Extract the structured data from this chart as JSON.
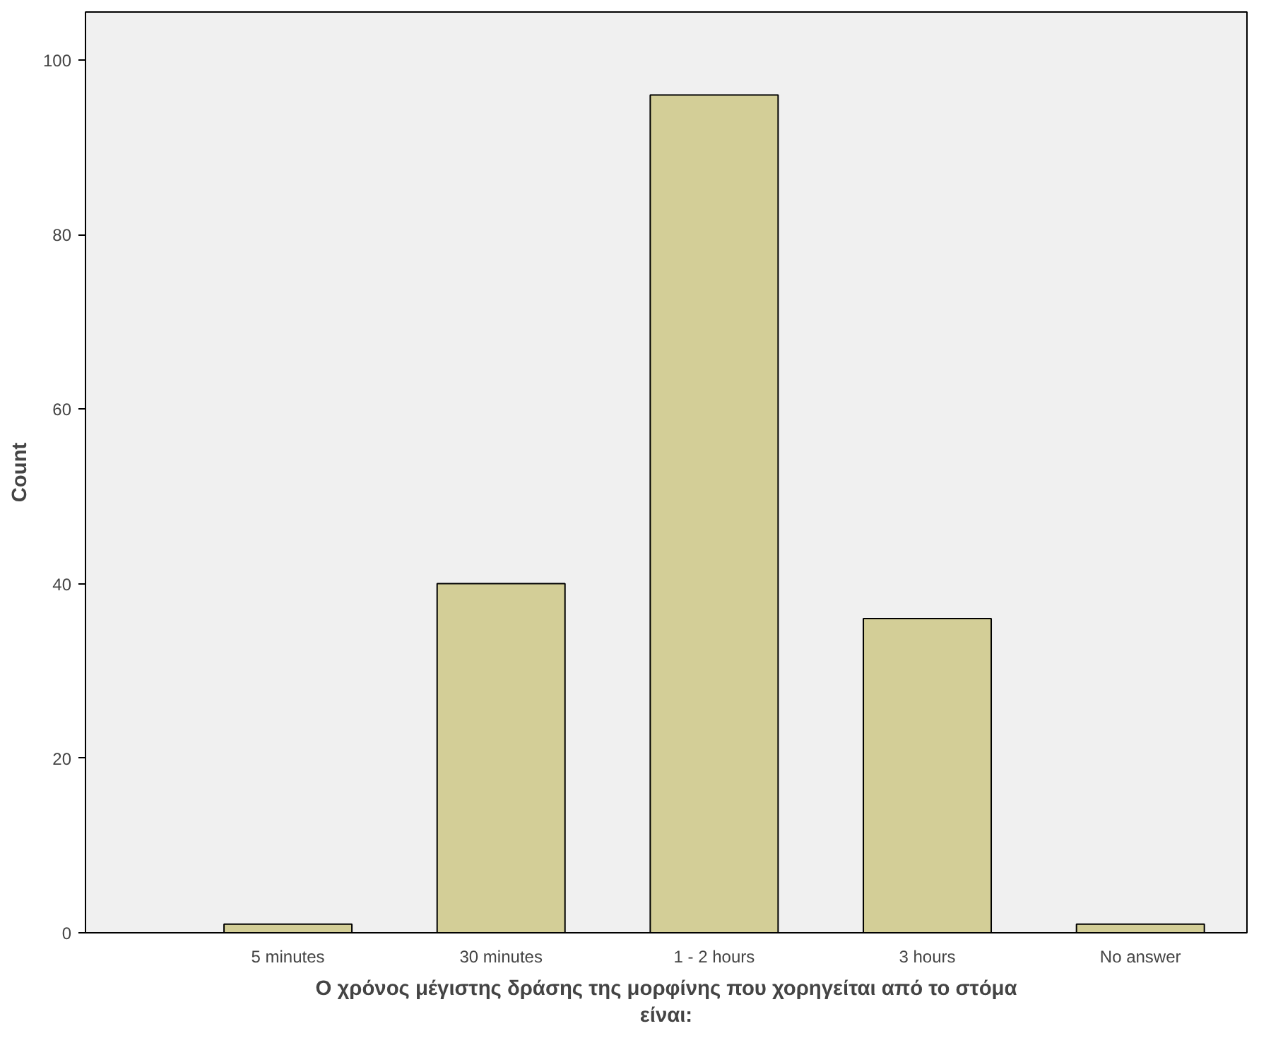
{
  "chart_data": {
    "type": "bar",
    "xlabel": "Ο χρόνος μέγιστης δράσης της μορφίνης που χορηγείται από το στόμα είναι:",
    "ylabel": "Count",
    "categories": [
      "5 minutes",
      "30 minutes",
      "1 - 2 hours",
      "3 hours",
      "No answer"
    ],
    "values": [
      1,
      40,
      96,
      36,
      1
    ],
    "color": "#d3ce97",
    "ylim": [
      0,
      105.5
    ],
    "yticks": [
      0,
      20,
      40,
      60,
      80,
      100
    ],
    "grid": false
  }
}
